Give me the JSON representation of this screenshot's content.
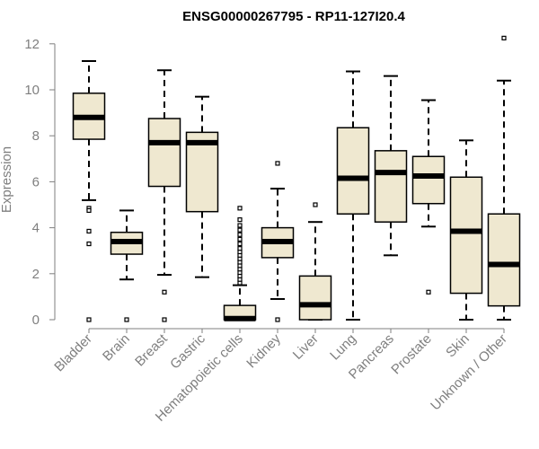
{
  "chart_data": {
    "type": "boxplot",
    "title": "ENSG00000267795 - RP11-127I20.4",
    "xlabel": "",
    "ylabel": "Expression",
    "ylim": [
      0,
      12.3
    ],
    "yticks": [
      0,
      2,
      4,
      6,
      8,
      10,
      12
    ],
    "box_fill": "#efe8d0",
    "stroke_color": "#000000",
    "label_color": "#7f7f7f",
    "categories": [
      "Bladder",
      "Brain",
      "Breast",
      "Gastric",
      "Hematopoietic cells",
      "Kidney",
      "Liver",
      "Lung",
      "Pancreas",
      "Prostate",
      "Skin",
      "Unknown / Other"
    ],
    "boxes": [
      {
        "whisker_low": 5.2,
        "q1": 7.85,
        "median": 8.8,
        "q3": 9.85,
        "whisker_high": 11.25,
        "outliers": [
          4.85,
          4.75,
          3.85,
          3.3,
          0.0
        ]
      },
      {
        "whisker_low": 1.75,
        "q1": 2.85,
        "median": 3.4,
        "q3": 3.8,
        "whisker_high": 4.75,
        "outliers": [
          0.0
        ]
      },
      {
        "whisker_low": 1.95,
        "q1": 5.8,
        "median": 7.7,
        "q3": 8.75,
        "whisker_high": 10.85,
        "outliers": [
          1.2,
          0.0
        ]
      },
      {
        "whisker_low": 1.85,
        "q1": 4.7,
        "median": 7.7,
        "q3": 8.15,
        "whisker_high": 9.7,
        "outliers": []
      },
      {
        "whisker_low": 0.0,
        "q1": 0.0,
        "median": 0.05,
        "q3": 0.62,
        "whisker_high": 1.5,
        "outliers": [
          1.6,
          1.75,
          1.9,
          2.05,
          2.2,
          2.35,
          2.5,
          2.65,
          2.8,
          2.95,
          3.1,
          3.3,
          3.5,
          3.7,
          3.9,
          4.1,
          4.35,
          4.85
        ]
      },
      {
        "whisker_low": 0.9,
        "q1": 2.7,
        "median": 3.4,
        "q3": 4.0,
        "whisker_high": 5.7,
        "outliers": [
          6.8,
          0.0
        ]
      },
      {
        "whisker_low": 0.0,
        "q1": 0.0,
        "median": 0.65,
        "q3": 1.9,
        "whisker_high": 4.25,
        "outliers": [
          5.0
        ]
      },
      {
        "whisker_low": 0.0,
        "q1": 4.6,
        "median": 6.15,
        "q3": 8.35,
        "whisker_high": 10.8,
        "outliers": []
      },
      {
        "whisker_low": 2.8,
        "q1": 4.25,
        "median": 6.4,
        "q3": 7.35,
        "whisker_high": 10.6,
        "outliers": []
      },
      {
        "whisker_low": 4.05,
        "q1": 5.05,
        "median": 6.25,
        "q3": 7.1,
        "whisker_high": 9.55,
        "outliers": [
          1.2
        ]
      },
      {
        "whisker_low": 0.0,
        "q1": 1.15,
        "median": 3.85,
        "q3": 6.2,
        "whisker_high": 7.8,
        "outliers": []
      },
      {
        "whisker_low": 0.0,
        "q1": 0.6,
        "median": 2.4,
        "q3": 4.6,
        "whisker_high": 10.4,
        "outliers": [
          12.25
        ]
      }
    ]
  }
}
